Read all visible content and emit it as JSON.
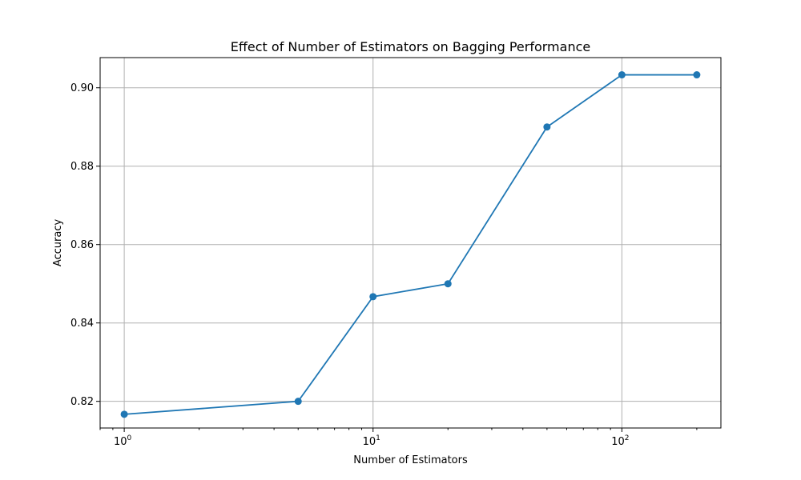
{
  "chart_data": {
    "type": "line",
    "title": "Effect of Number of Estimators on Bagging Performance",
    "xlabel": "Number of Estimators",
    "ylabel": "Accuracy",
    "xscale": "log",
    "xlim": [
      0.8,
      250
    ],
    "ylim": [
      0.8132,
      0.9077
    ],
    "grid": true,
    "x_major_ticks": [
      {
        "value": 1,
        "base": "10",
        "exp": "0"
      },
      {
        "value": 10,
        "base": "10",
        "exp": "1"
      },
      {
        "value": 100,
        "base": "10",
        "exp": "2"
      }
    ],
    "y_ticks": [
      0.82,
      0.84,
      0.86,
      0.88,
      0.9
    ],
    "y_tick_labels": [
      "0.82",
      "0.84",
      "0.86",
      "0.88",
      "0.90"
    ],
    "series": [
      {
        "name": "Accuracy",
        "color": "#1f77b4",
        "marker": "circle",
        "x": [
          1,
          5,
          10,
          20,
          50,
          100,
          200
        ],
        "y": [
          0.8167,
          0.82,
          0.8467,
          0.85,
          0.89,
          0.9033,
          0.9033
        ]
      }
    ]
  }
}
